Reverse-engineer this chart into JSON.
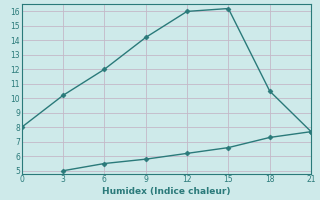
{
  "xlabel": "Humidex (Indice chaleur)",
  "x_upper": [
    0,
    3,
    6,
    9,
    12,
    15,
    18,
    21
  ],
  "y_upper": [
    8,
    10.2,
    12,
    14.2,
    16,
    16.2,
    10.5,
    7.7
  ],
  "x_lower": [
    3,
    6,
    9,
    12,
    15,
    18,
    21
  ],
  "y_lower": [
    5,
    5.5,
    5.8,
    6.2,
    6.6,
    7.3,
    7.7
  ],
  "line_color": "#2a7a7a",
  "bg_color": "#ceeaea",
  "grid_color": "#c4b8c8",
  "xlim": [
    0,
    21
  ],
  "ylim": [
    4.8,
    16.5
  ],
  "xticks": [
    0,
    3,
    6,
    9,
    12,
    15,
    18,
    21
  ],
  "yticks": [
    5,
    6,
    7,
    8,
    9,
    10,
    11,
    12,
    13,
    14,
    15,
    16
  ],
  "marker": "D",
  "marker_size": 2.5,
  "linewidth": 1.0,
  "tick_fontsize": 5.5,
  "xlabel_fontsize": 6.5
}
